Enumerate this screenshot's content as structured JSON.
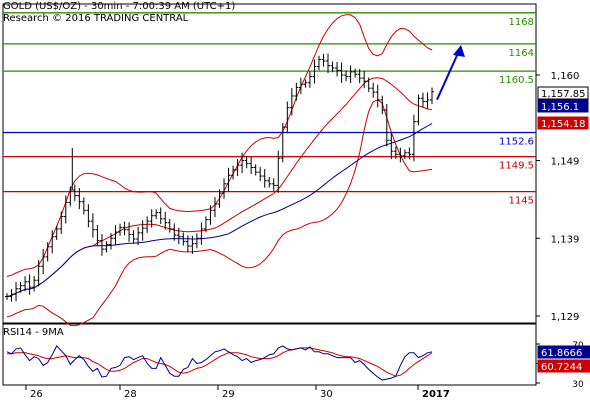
{
  "header": {
    "line1": "GOLD (US$/OZ) - 30min - 7:00:39 AM (UTC+1)",
    "line2": "Research © 2016 TRADING CENTRAL"
  },
  "colors": {
    "price_bar": "#000000",
    "bollinger": "#cc0000",
    "moving_average": "#00008b",
    "resistance": "#2e8b00",
    "pivot": "#0000cc",
    "support": "#cc0000",
    "arrow": "#0000cc",
    "rsi": "#00008b",
    "rsi_signal": "#cc0000"
  },
  "chart_data": [
    {
      "type": "line",
      "title": "GOLD (US$/OZ) - 30min",
      "x_tick_labels": [
        "26",
        "28",
        "29",
        "30",
        "2017"
      ],
      "y_tick_labels": [
        1160,
        1149,
        1139,
        1129
      ],
      "ylim": [
        1127.5,
        1169.5
      ],
      "grid": false,
      "levels": [
        {
          "label": "1168",
          "value": 1168,
          "role": "resistance"
        },
        {
          "label": "1164",
          "value": 1164,
          "role": "resistance"
        },
        {
          "label": "1160.5",
          "value": 1160.5,
          "role": "resistance"
        },
        {
          "label": "1152.6",
          "value": 1152.6,
          "role": "pivot"
        },
        {
          "label": "1149.5",
          "value": 1149.5,
          "role": "support"
        },
        {
          "label": "1145",
          "value": 1145,
          "role": "support"
        }
      ],
      "value_tags": [
        {
          "label": "1,157.85",
          "value": 1157.85,
          "role": "last"
        },
        {
          "label": "1,156.1",
          "value": 1156.1,
          "role": "moving_average"
        },
        {
          "label": "1,154.18",
          "value": 1154.18,
          "role": "bollinger"
        }
      ],
      "price_close": [
        1131.5,
        1131.8,
        1132.5,
        1132.9,
        1133.4,
        1132.7,
        1133.6,
        1135.4,
        1136.6,
        1137.9,
        1139.2,
        1140.2,
        1141.8,
        1143.6,
        1145.2,
        1144.5,
        1143.7,
        1142.6,
        1141.2,
        1140.1,
        1138.7,
        1137.6,
        1138.2,
        1139.0,
        1139.8,
        1140.4,
        1140.1,
        1139.5,
        1138.9,
        1139.7,
        1140.3,
        1141.2,
        1141.9,
        1142.3,
        1141.5,
        1141.0,
        1140.2,
        1139.4,
        1139.2,
        1138.6,
        1138.0,
        1138.3,
        1139.0,
        1140.2,
        1141.4,
        1142.6,
        1143.4,
        1144.8,
        1146.0,
        1147.1,
        1147.8,
        1148.4,
        1149.0,
        1148.6,
        1148.1,
        1147.5,
        1147.0,
        1146.4,
        1146.0,
        1145.8,
        1149.3,
        1153.3,
        1155.8,
        1157.3,
        1158.4,
        1158.8,
        1159.0,
        1159.8,
        1161.1,
        1162.0,
        1161.8,
        1161.2,
        1160.9,
        1160.6,
        1160.0,
        1159.8,
        1160.4,
        1160.1,
        1159.6,
        1159.2,
        1158.3,
        1157.8,
        1156.8,
        1155.5,
        1151.6,
        1150.2,
        1149.8,
        1149.6,
        1150.0,
        1149.8,
        1154.0,
        1157.0,
        1156.6,
        1156.8,
        1157.85
      ],
      "series": [
        {
          "name": "RSI14",
          "panel": "rsi",
          "ylim": [
            25,
            75
          ],
          "y_tick_labels": [
            70,
            50,
            30
          ],
          "last_label": "61.8666",
          "last_value": 61.8666,
          "values": [
            62,
            60,
            65,
            66,
            59,
            53,
            57,
            55,
            48,
            51,
            59,
            68,
            63,
            58,
            49,
            54,
            58,
            54,
            47,
            42,
            45,
            36,
            37,
            45,
            46,
            48,
            56,
            57,
            54,
            56,
            58,
            50,
            45,
            45,
            56,
            48,
            40,
            37,
            37,
            44,
            46,
            55,
            50,
            51,
            54,
            58,
            62,
            63,
            65,
            62,
            59,
            57,
            53,
            55,
            51,
            53,
            54,
            56,
            59,
            60,
            66,
            68,
            65,
            64,
            65,
            66,
            64,
            67,
            62,
            62,
            60,
            60,
            58,
            56,
            56,
            56,
            56,
            51,
            53,
            49,
            44,
            40,
            36,
            33,
            34,
            35,
            37,
            48,
            57,
            61,
            61,
            56,
            58,
            61,
            61.8666
          ]
        },
        {
          "name": "9MA",
          "panel": "rsi",
          "last_label": "60.7244",
          "last_value": 60.7244,
          "values": [
            60,
            60,
            61,
            61,
            61,
            60,
            59,
            58,
            56,
            55,
            55,
            56,
            57,
            58,
            57,
            56,
            56,
            56,
            55,
            52,
            50,
            47,
            44,
            42,
            42,
            43,
            45,
            48,
            51,
            53,
            55,
            55,
            53,
            51,
            50,
            49,
            47,
            44,
            41,
            40,
            41,
            43,
            45,
            46,
            48,
            51,
            54,
            57,
            59,
            61,
            61,
            61,
            60,
            59,
            57,
            56,
            55,
            55,
            55,
            56,
            58,
            61,
            63,
            64,
            65,
            66,
            66,
            66,
            65,
            64,
            63,
            62,
            61,
            59,
            58,
            57,
            57,
            56,
            55,
            53,
            51,
            49,
            47,
            44,
            41,
            39,
            37,
            38,
            41,
            45,
            49,
            52,
            55,
            58,
            60.7244
          ]
        }
      ]
    }
  ]
}
